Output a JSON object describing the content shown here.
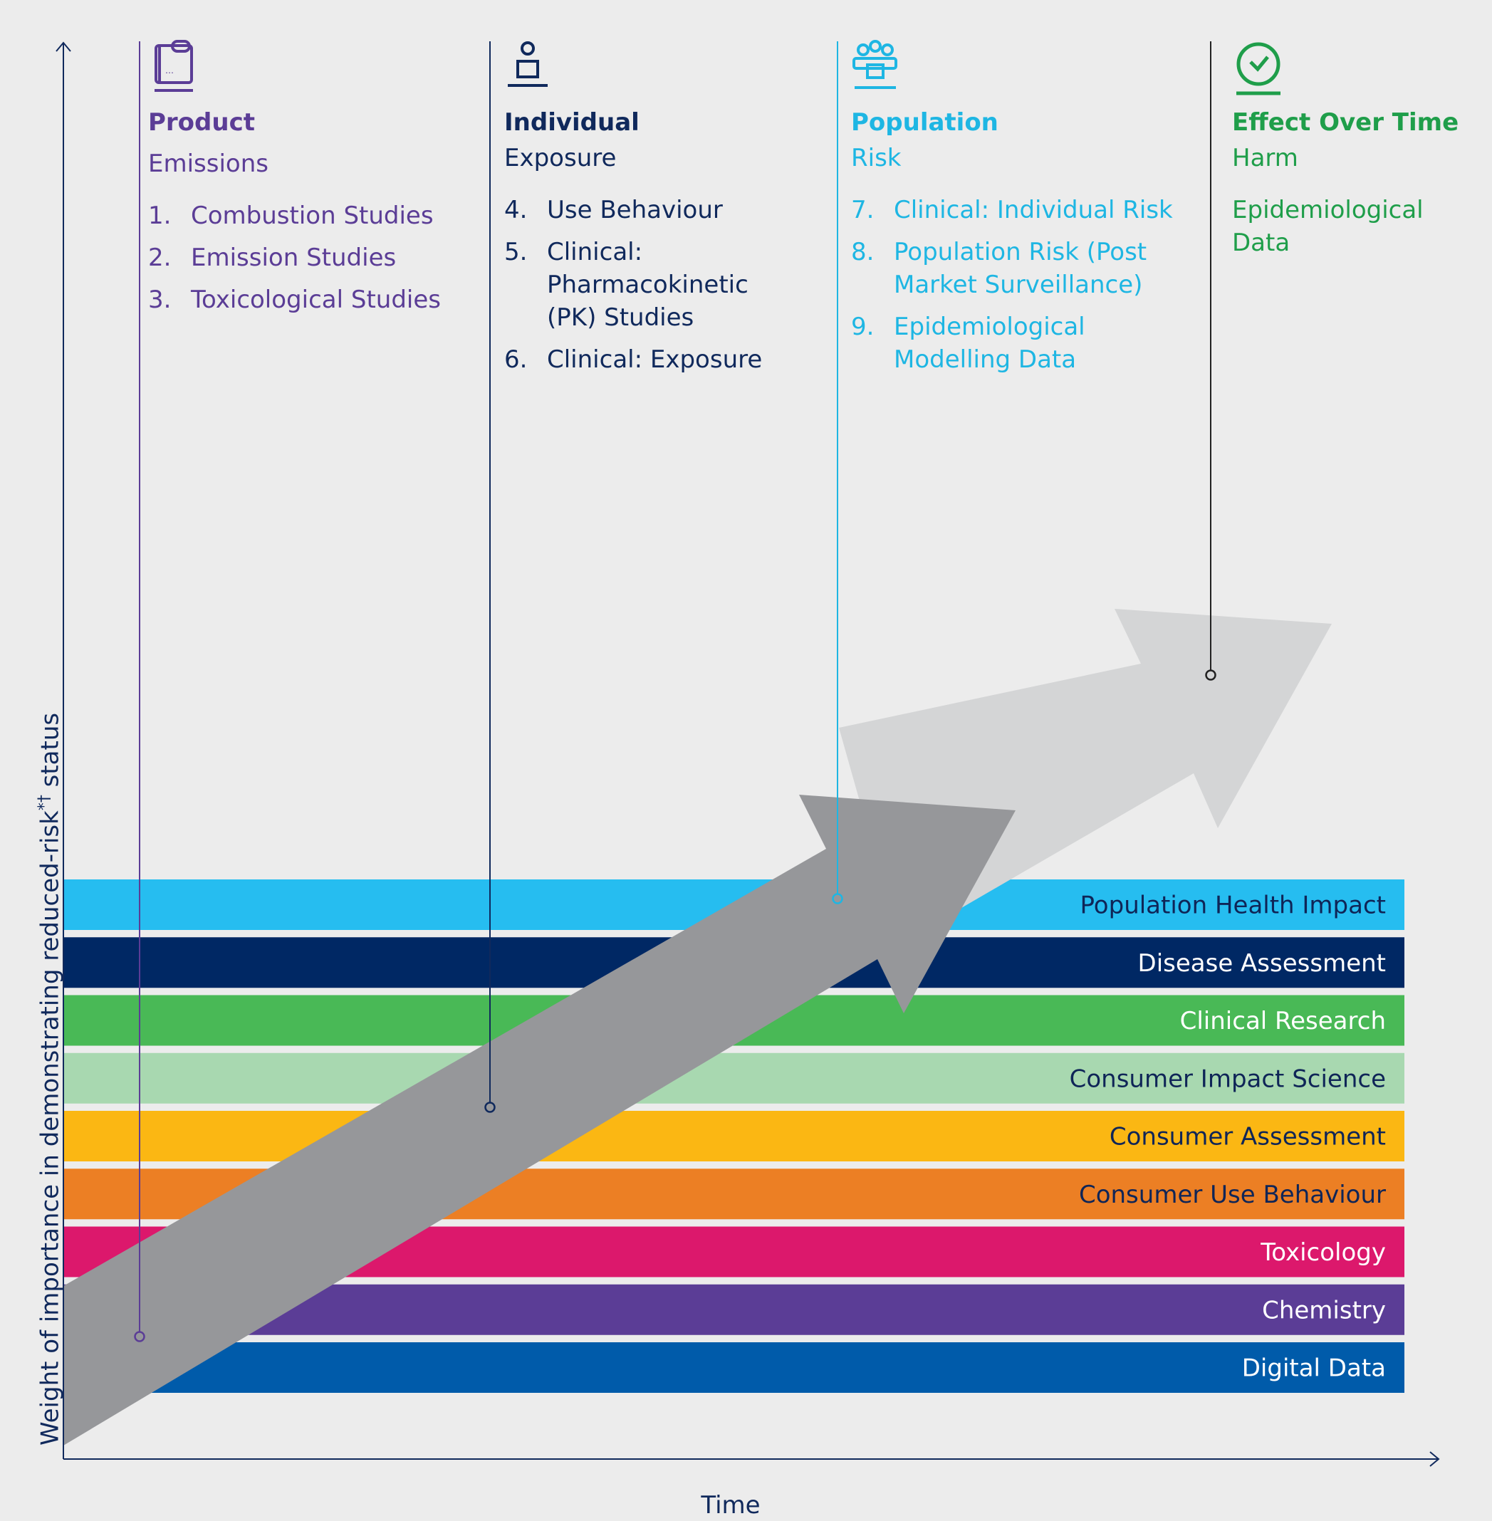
{
  "columns": [
    {
      "title": "Product",
      "subtitle": "Emissions",
      "color": "#5b3d96",
      "icon": "device-icon",
      "items": [
        {
          "num": "1.",
          "text": "Combustion Studies"
        },
        {
          "num": "2.",
          "text": "Emission Studies"
        },
        {
          "num": "3.",
          "text": "Toxicological Studies"
        }
      ]
    },
    {
      "title": "Individual",
      "subtitle": "Exposure",
      "color": "#10295c",
      "icon": "person-icon",
      "items": [
        {
          "num": "4.",
          "text": "Use Behaviour"
        },
        {
          "num": "5.",
          "text": "Clinical: Pharmacokinetic (PK) Studies"
        },
        {
          "num": "6.",
          "text": "Clinical: Exposure"
        }
      ]
    },
    {
      "title": "Population",
      "subtitle": "Risk",
      "color": "#1eb6e3",
      "icon": "group-icon",
      "items": [
        {
          "num": "7.",
          "text": "Clinical: Individual Risk"
        },
        {
          "num": "8.",
          "text": "Population Risk (Post Market Surveillance)"
        },
        {
          "num": "9.",
          "text": "Epidemiological Modelling Data"
        }
      ]
    },
    {
      "title": "Effect Over Time",
      "subtitle": "Harm",
      "color": "#1f9e4a",
      "icon": "clock-check-icon",
      "note": "Epidemiological Data"
    }
  ],
  "bands": [
    {
      "label": "Population Health Impact",
      "color": "#26bdf0",
      "text_color": "#0f2557"
    },
    {
      "label": "Disease Assessment",
      "color": "#002864",
      "text_color": "#ffffff"
    },
    {
      "label": "Clinical Research",
      "color": "#49b956",
      "text_color": "#ffffff"
    },
    {
      "label": "Consumer Impact Science",
      "color": "#a8d8b0",
      "text_color": "#0f2557"
    },
    {
      "label": "Consumer Assessment",
      "color": "#fbb713",
      "text_color": "#0f2557"
    },
    {
      "label": "Consumer Use Behaviour",
      "color": "#ec7f24",
      "text_color": "#0f2557"
    },
    {
      "label": "Toxicology",
      "color": "#dc186c",
      "text_color": "#ffffff"
    },
    {
      "label": "Chemistry",
      "color": "#5b3d96",
      "text_color": "#ffffff"
    },
    {
      "label": "Digital Data",
      "color": "#005baa",
      "text_color": "#ffffff"
    }
  ],
  "axes": {
    "x_label": "Time",
    "y_label": "Weight of importance in demonstrating reduced-risk",
    "y_label_sup": "*†",
    "y_label_end": " status",
    "axis_color": "#10295c"
  },
  "arrow_colors": {
    "dark": "#96979a",
    "light": "#d4d5d6"
  }
}
